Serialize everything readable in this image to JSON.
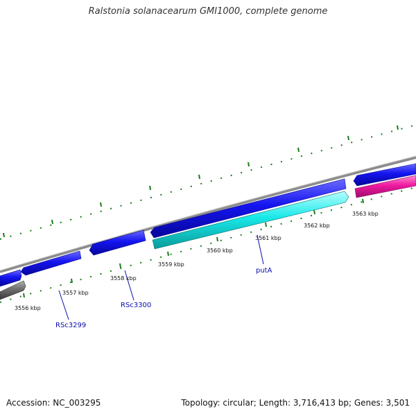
{
  "title": "Ralstonia solanacearum GMI1000, complete genome",
  "footer": {
    "accession": "Accession: NC_003295",
    "summary": "Topology: circular; Length: 3,716,413 bp; Genes: 3,501"
  },
  "colors": {
    "backbone": "#8c8c8c",
    "cds": "#1010ee",
    "highlight": "#19e8e8",
    "pink": "#ee1aa0",
    "gray_feature": "#6e6e6e",
    "ticks": "#1a7a1a",
    "label": "#0a0aaa"
  },
  "tick_labels": [
    {
      "text": "3556 kbp"
    },
    {
      "text": "3557 kbp"
    },
    {
      "text": "3558 kbp"
    },
    {
      "text": "3559 kbp"
    },
    {
      "text": "3560 kbp"
    },
    {
      "text": "3561 kbp"
    },
    {
      "text": "3562 kbp"
    },
    {
      "text": "3563 kbp"
    }
  ],
  "gene_labels": [
    {
      "text": "RSc3299"
    },
    {
      "text": "RSc3300"
    },
    {
      "text": "putA"
    }
  ]
}
